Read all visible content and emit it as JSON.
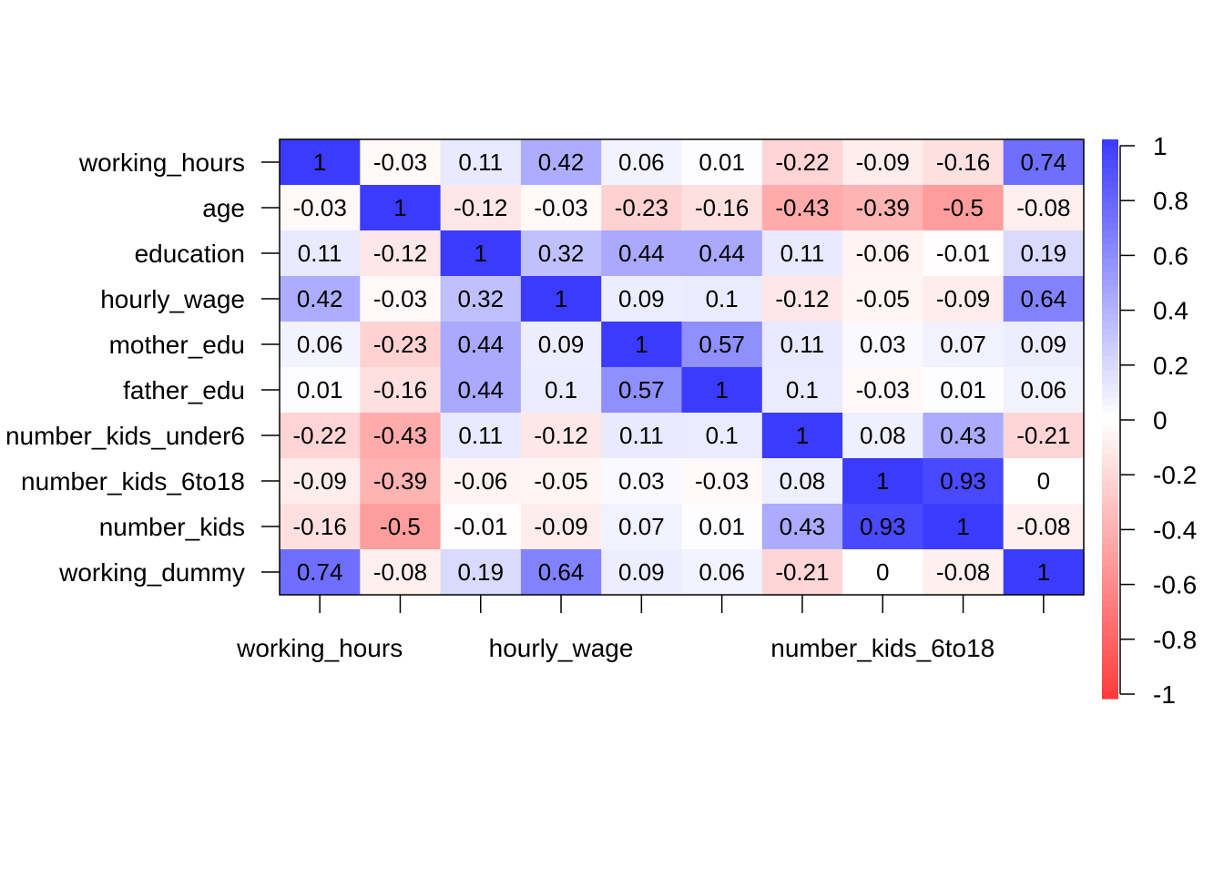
{
  "chart_data": {
    "type": "heatmap",
    "title": "",
    "xlabel": "",
    "ylabel": "",
    "row_labels": [
      "working_hours",
      "age",
      "education",
      "hourly_wage",
      "mother_edu",
      "father_edu",
      "number_kids_under6",
      "number_kids_6to18",
      "number_kids",
      "working_dummy"
    ],
    "x_tick_labels": [
      "working_hours",
      "",
      "",
      "hourly_wage",
      "",
      "",
      "",
      "number_kids_6to18",
      "",
      ""
    ],
    "matrix": [
      [
        1,
        -0.03,
        0.11,
        0.42,
        0.06,
        0.01,
        -0.22,
        -0.09,
        -0.16,
        0.74
      ],
      [
        -0.03,
        1,
        -0.12,
        -0.03,
        -0.23,
        -0.16,
        -0.43,
        -0.39,
        -0.5,
        -0.08
      ],
      [
        0.11,
        -0.12,
        1,
        0.32,
        0.44,
        0.44,
        0.11,
        -0.06,
        -0.01,
        0.19
      ],
      [
        0.42,
        -0.03,
        0.32,
        1,
        0.09,
        0.1,
        -0.12,
        -0.05,
        -0.09,
        0.64
      ],
      [
        0.06,
        -0.23,
        0.44,
        0.09,
        1,
        0.57,
        0.11,
        0.03,
        0.07,
        0.09
      ],
      [
        0.01,
        -0.16,
        0.44,
        0.1,
        0.57,
        1,
        0.1,
        -0.03,
        0.01,
        0.06
      ],
      [
        -0.22,
        -0.43,
        0.11,
        -0.12,
        0.11,
        0.1,
        1,
        0.08,
        0.43,
        -0.21
      ],
      [
        -0.09,
        -0.39,
        -0.06,
        -0.05,
        0.03,
        -0.03,
        0.08,
        1,
        0.93,
        0
      ],
      [
        -0.16,
        -0.5,
        -0.01,
        -0.09,
        0.07,
        0.01,
        0.43,
        0.93,
        1,
        -0.08
      ],
      [
        0.74,
        -0.08,
        0.19,
        0.64,
        0.09,
        0.06,
        -0.21,
        0,
        -0.08,
        1
      ]
    ],
    "color_scale": {
      "min": -1,
      "max": 1,
      "low_color": "#FF3B3B",
      "mid_color": "#FFFFFF",
      "high_color": "#3B3BFF",
      "ticks": [
        "1",
        "0.8",
        "0.6",
        "0.4",
        "0.2",
        "0",
        "-0.2",
        "-0.4",
        "-0.6",
        "-0.8",
        "-1"
      ]
    },
    "legend_placement": "right",
    "grid": false
  }
}
